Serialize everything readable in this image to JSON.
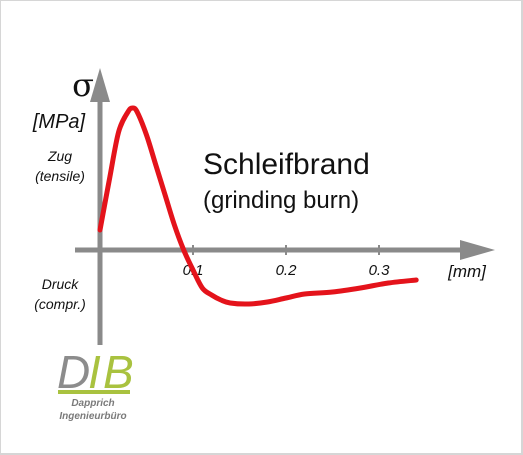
{
  "chart_data": {
    "type": "line",
    "y_symbol": "σ",
    "y_unit": "[MPa]",
    "x_unit": "[mm]",
    "y_region_labels": {
      "positive": [
        "Zug",
        "(tensile)"
      ],
      "negative": [
        "Druck",
        "(compr.)"
      ]
    },
    "x_ticks": [
      0.1,
      0.2,
      0.3
    ],
    "x_tick_labels": [
      "0.1",
      "0.2",
      "0.3"
    ],
    "xlim": [
      0,
      0.38
    ],
    "ylim": [
      -100,
      160
    ],
    "title_lines": [
      "Schleifbrand",
      "(grinding burn)"
    ],
    "series": [
      {
        "color": "#e4131b",
        "x": [
          0.0,
          0.01,
          0.02,
          0.03,
          0.035,
          0.04,
          0.05,
          0.06,
          0.07,
          0.08,
          0.09,
          0.1,
          0.11,
          0.12,
          0.13,
          0.14,
          0.16,
          0.18,
          0.2,
          0.22,
          0.25,
          0.28,
          0.31,
          0.34
        ],
        "y": [
          20,
          70,
          118,
          138,
          142,
          138,
          115,
          85,
          55,
          25,
          0,
          -20,
          -38,
          -45,
          -50,
          -53,
          -54,
          -52,
          -48,
          -44,
          -42,
          -38,
          -33,
          -30
        ]
      }
    ],
    "grid": false,
    "legend": "none"
  },
  "logo": {
    "text": "DIB",
    "line1": "Dapprich",
    "line2": "Ingenieurbüro",
    "colors": {
      "D": "#8c8c8c",
      "I": "#a9c23f",
      "B": "#a9c23f",
      "bar": "#a9c23f",
      "subtext": "#7a7a7a"
    }
  }
}
